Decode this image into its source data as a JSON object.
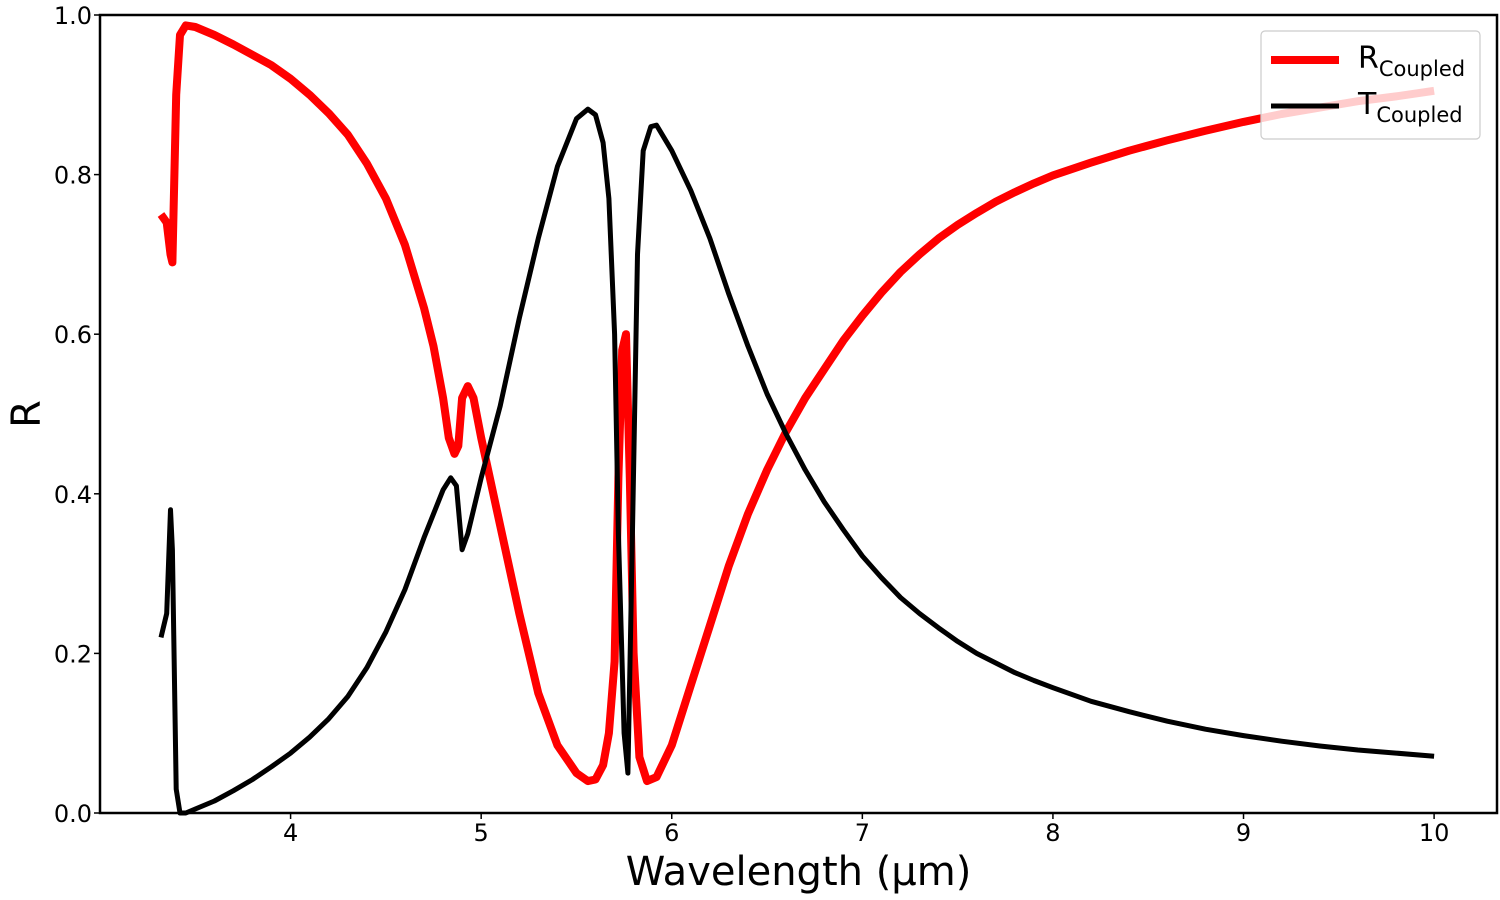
{
  "chart_data": {
    "type": "line",
    "xlabel": "Wavelength (μm)",
    "ylabel": "R",
    "xlim": [
      3.0,
      10.33
    ],
    "ylim": [
      0.0,
      1.0
    ],
    "x_ticks": [
      4,
      5,
      6,
      7,
      8,
      9,
      10
    ],
    "y_ticks": [
      0.0,
      0.2,
      0.4,
      0.6,
      0.8,
      1.0
    ],
    "x_tick_labels": [
      "4",
      "5",
      "6",
      "7",
      "8",
      "9",
      "10"
    ],
    "y_tick_labels": [
      "0.0",
      "0.2",
      "0.4",
      "0.6",
      "0.8",
      "1.0"
    ],
    "legend_position": "top-right",
    "grid": false,
    "series": [
      {
        "name": "R",
        "name_subscript": "Coupled",
        "color": "#ff0000",
        "points": [
          [
            3.32,
            0.75
          ],
          [
            3.35,
            0.74
          ],
          [
            3.37,
            0.7
          ],
          [
            3.38,
            0.69
          ],
          [
            3.4,
            0.9
          ],
          [
            3.42,
            0.975
          ],
          [
            3.45,
            0.987
          ],
          [
            3.5,
            0.985
          ],
          [
            3.6,
            0.975
          ],
          [
            3.7,
            0.963
          ],
          [
            3.8,
            0.95
          ],
          [
            3.9,
            0.937
          ],
          [
            4.0,
            0.92
          ],
          [
            4.1,
            0.9
          ],
          [
            4.2,
            0.877
          ],
          [
            4.3,
            0.85
          ],
          [
            4.4,
            0.814
          ],
          [
            4.5,
            0.77
          ],
          [
            4.6,
            0.712
          ],
          [
            4.7,
            0.633
          ],
          [
            4.75,
            0.585
          ],
          [
            4.8,
            0.52
          ],
          [
            4.83,
            0.47
          ],
          [
            4.86,
            0.45
          ],
          [
            4.88,
            0.46
          ],
          [
            4.9,
            0.52
          ],
          [
            4.93,
            0.535
          ],
          [
            4.96,
            0.52
          ],
          [
            5.0,
            0.47
          ],
          [
            5.1,
            0.36
          ],
          [
            5.2,
            0.25
          ],
          [
            5.3,
            0.15
          ],
          [
            5.4,
            0.085
          ],
          [
            5.5,
            0.05
          ],
          [
            5.56,
            0.04
          ],
          [
            5.6,
            0.042
          ],
          [
            5.64,
            0.06
          ],
          [
            5.67,
            0.1
          ],
          [
            5.7,
            0.19
          ],
          [
            5.72,
            0.42
          ],
          [
            5.74,
            0.58
          ],
          [
            5.76,
            0.6
          ],
          [
            5.78,
            0.42
          ],
          [
            5.8,
            0.2
          ],
          [
            5.83,
            0.07
          ],
          [
            5.87,
            0.04
          ],
          [
            5.92,
            0.045
          ],
          [
            6.0,
            0.085
          ],
          [
            6.1,
            0.16
          ],
          [
            6.2,
            0.235
          ],
          [
            6.3,
            0.31
          ],
          [
            6.4,
            0.375
          ],
          [
            6.5,
            0.43
          ],
          [
            6.6,
            0.478
          ],
          [
            6.7,
            0.52
          ],
          [
            6.8,
            0.556
          ],
          [
            6.9,
            0.592
          ],
          [
            7.0,
            0.623
          ],
          [
            7.1,
            0.652
          ],
          [
            7.2,
            0.678
          ],
          [
            7.3,
            0.7
          ],
          [
            7.4,
            0.72
          ],
          [
            7.5,
            0.737
          ],
          [
            7.6,
            0.752
          ],
          [
            7.7,
            0.766
          ],
          [
            7.8,
            0.778
          ],
          [
            7.9,
            0.789
          ],
          [
            8.0,
            0.799
          ],
          [
            8.2,
            0.815
          ],
          [
            8.4,
            0.83
          ],
          [
            8.6,
            0.843
          ],
          [
            8.8,
            0.855
          ],
          [
            9.0,
            0.866
          ],
          [
            9.2,
            0.876
          ],
          [
            9.4,
            0.884
          ],
          [
            9.6,
            0.892
          ],
          [
            9.8,
            0.898
          ],
          [
            10.0,
            0.905
          ]
        ]
      },
      {
        "name": "T",
        "name_subscript": "Coupled",
        "color": "#000000",
        "points": [
          [
            3.32,
            0.22
          ],
          [
            3.35,
            0.25
          ],
          [
            3.37,
            0.38
          ],
          [
            3.38,
            0.33
          ],
          [
            3.4,
            0.03
          ],
          [
            3.42,
            0.0
          ],
          [
            3.45,
            0.0
          ],
          [
            3.5,
            0.005
          ],
          [
            3.6,
            0.015
          ],
          [
            3.7,
            0.028
          ],
          [
            3.8,
            0.042
          ],
          [
            3.9,
            0.058
          ],
          [
            4.0,
            0.075
          ],
          [
            4.1,
            0.095
          ],
          [
            4.2,
            0.118
          ],
          [
            4.3,
            0.146
          ],
          [
            4.4,
            0.182
          ],
          [
            4.5,
            0.227
          ],
          [
            4.6,
            0.28
          ],
          [
            4.7,
            0.345
          ],
          [
            4.8,
            0.405
          ],
          [
            4.84,
            0.42
          ],
          [
            4.87,
            0.41
          ],
          [
            4.9,
            0.33
          ],
          [
            4.93,
            0.35
          ],
          [
            5.0,
            0.42
          ],
          [
            5.1,
            0.51
          ],
          [
            5.2,
            0.62
          ],
          [
            5.3,
            0.72
          ],
          [
            5.4,
            0.81
          ],
          [
            5.5,
            0.87
          ],
          [
            5.56,
            0.882
          ],
          [
            5.6,
            0.875
          ],
          [
            5.64,
            0.84
          ],
          [
            5.67,
            0.77
          ],
          [
            5.7,
            0.6
          ],
          [
            5.72,
            0.35
          ],
          [
            5.75,
            0.1
          ],
          [
            5.77,
            0.05
          ],
          [
            5.79,
            0.3
          ],
          [
            5.82,
            0.7
          ],
          [
            5.85,
            0.83
          ],
          [
            5.89,
            0.86
          ],
          [
            5.92,
            0.862
          ],
          [
            6.0,
            0.83
          ],
          [
            6.1,
            0.78
          ],
          [
            6.2,
            0.72
          ],
          [
            6.3,
            0.65
          ],
          [
            6.4,
            0.585
          ],
          [
            6.5,
            0.525
          ],
          [
            6.6,
            0.475
          ],
          [
            6.7,
            0.43
          ],
          [
            6.8,
            0.39
          ],
          [
            6.9,
            0.355
          ],
          [
            7.0,
            0.322
          ],
          [
            7.1,
            0.295
          ],
          [
            7.2,
            0.27
          ],
          [
            7.3,
            0.25
          ],
          [
            7.4,
            0.232
          ],
          [
            7.5,
            0.215
          ],
          [
            7.6,
            0.2
          ],
          [
            7.7,
            0.188
          ],
          [
            7.8,
            0.176
          ],
          [
            7.9,
            0.166
          ],
          [
            8.0,
            0.157
          ],
          [
            8.2,
            0.14
          ],
          [
            8.4,
            0.127
          ],
          [
            8.6,
            0.115
          ],
          [
            8.8,
            0.105
          ],
          [
            9.0,
            0.097
          ],
          [
            9.2,
            0.09
          ],
          [
            9.4,
            0.084
          ],
          [
            9.6,
            0.079
          ],
          [
            9.8,
            0.075
          ],
          [
            10.0,
            0.071
          ]
        ]
      }
    ]
  }
}
